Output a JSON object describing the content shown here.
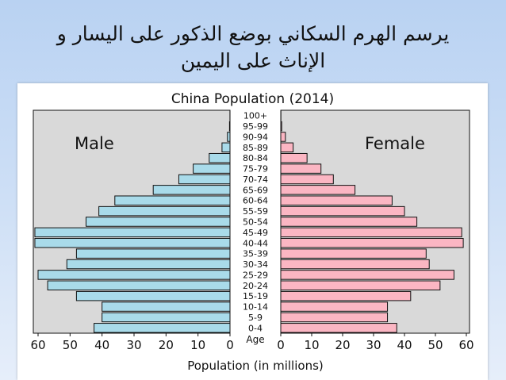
{
  "slide": {
    "title_line1": "يرسم الهرم السكاني بوضع الذكور على اليسار و",
    "title_line2": "الإناث على اليمين"
  },
  "chart_data": {
    "type": "bar",
    "title": "China Population (2014)",
    "xlabel": "Population (in millions)",
    "center_axis_label": "Age",
    "categories": [
      "0-4",
      "5-9",
      "10-14",
      "15-19",
      "20-24",
      "25-29",
      "30-34",
      "35-39",
      "40-44",
      "45-49",
      "50-54",
      "55-59",
      "60-64",
      "65-69",
      "70-74",
      "75-79",
      "80-84",
      "85-89",
      "90-94",
      "95-99",
      "100+"
    ],
    "series": [
      {
        "name": "Male",
        "color": "#a9dbea",
        "values": [
          42.5,
          40,
          40,
          48,
          57,
          60,
          51,
          48,
          61,
          61,
          45,
          41,
          36,
          24,
          16,
          11.5,
          6.5,
          2.5,
          0.8,
          0.15,
          0.02
        ]
      },
      {
        "name": "Female",
        "color": "#fbb6c3",
        "values": [
          37.5,
          34.5,
          34.5,
          42,
          51.5,
          56,
          48,
          47,
          59,
          58.5,
          44,
          40,
          36,
          24,
          17,
          13,
          8.5,
          4,
          1.5,
          0.3,
          0.05
        ]
      }
    ],
    "xlim": [
      0,
      60
    ],
    "xticks": [
      60,
      50,
      40,
      30,
      20,
      10,
      0
    ],
    "panel_bg": "#d9d9d9",
    "grid": false,
    "legend": "series names printed inside each panel (Male top-left, Female top-right)"
  }
}
